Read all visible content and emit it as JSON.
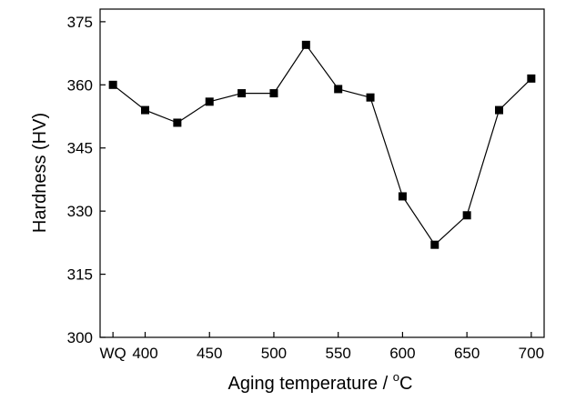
{
  "chart_data": {
    "type": "line",
    "xlabel": "Aging temperature / ",
    "xlabel_unit_sup": "o",
    "xlabel_unit": "C",
    "ylabel": "Hardness (HV)",
    "ylim": [
      300,
      378
    ],
    "yticks": [
      300,
      315,
      330,
      345,
      360,
      375
    ],
    "xlim": [
      365,
      710
    ],
    "xticks": [
      {
        "value": 375,
        "label": "WQ"
      },
      {
        "value": 400,
        "label": "400"
      },
      {
        "value": 450,
        "label": "450"
      },
      {
        "value": 500,
        "label": "500"
      },
      {
        "value": 550,
        "label": "550"
      },
      {
        "value": 600,
        "label": "600"
      },
      {
        "value": 650,
        "label": "650"
      },
      {
        "value": 700,
        "label": "700"
      }
    ],
    "grid": false,
    "legend": "none",
    "series": [
      {
        "marker": "square",
        "color": "#000000",
        "x": [
          375,
          400,
          425,
          450,
          475,
          500,
          525,
          550,
          575,
          600,
          625,
          650,
          675,
          700
        ],
        "y": [
          360,
          354,
          351,
          356,
          358,
          358,
          369.5,
          359,
          357,
          333.5,
          322,
          329,
          354,
          361.5
        ]
      }
    ]
  }
}
